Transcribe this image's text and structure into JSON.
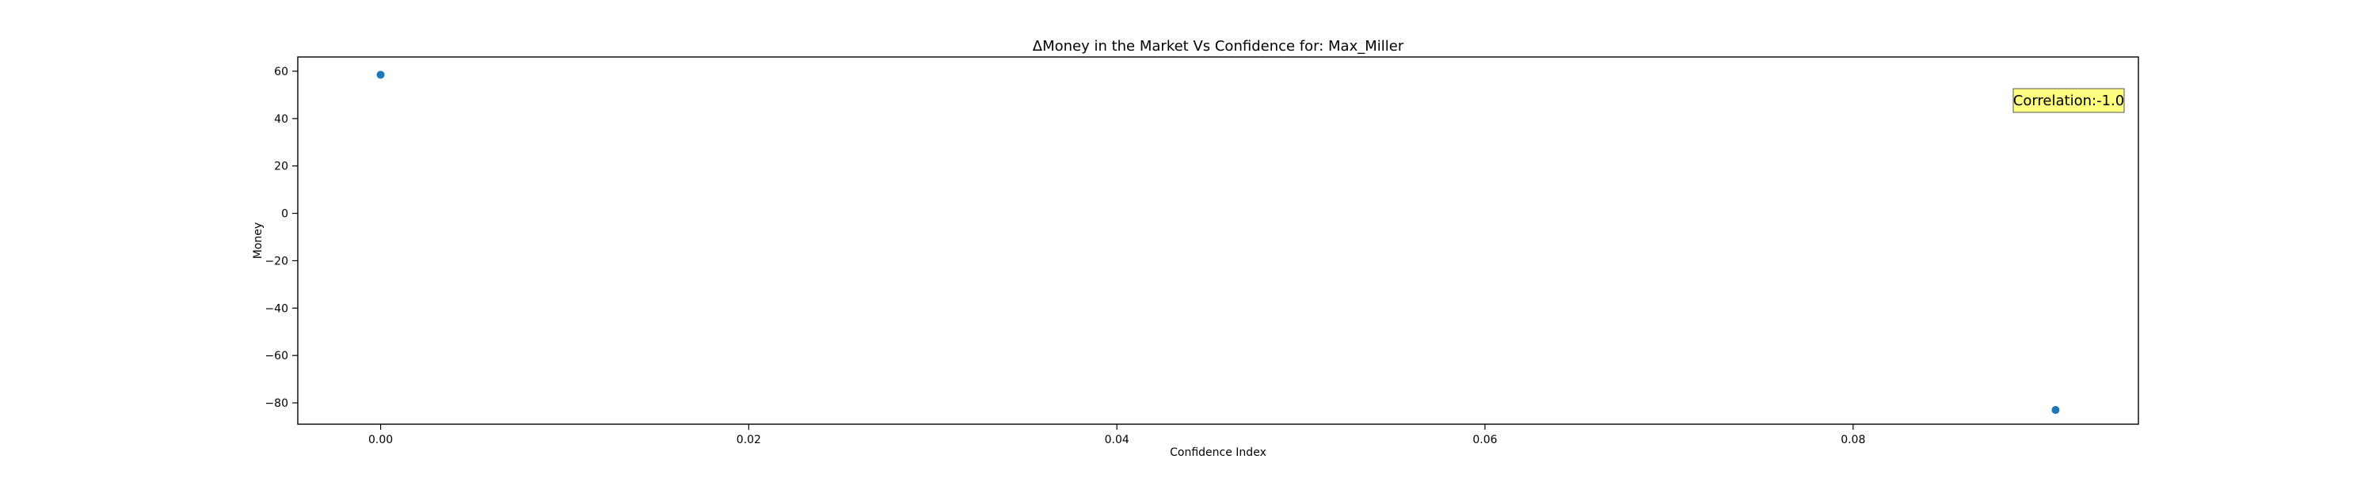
{
  "chart_data": {
    "type": "scatter",
    "title": "ΔMoney in the Market Vs Confidence for: Max_Miller",
    "xlabel": "Confidence Index",
    "ylabel": "Money",
    "xlim": [
      -0.0045,
      0.0955
    ],
    "ylim": [
      -89,
      66
    ],
    "x_ticks": [
      0.0,
      0.02,
      0.04,
      0.06,
      0.08
    ],
    "x_tick_labels": [
      "0.00",
      "0.02",
      "0.04",
      "0.06",
      "0.08"
    ],
    "y_ticks": [
      60,
      40,
      20,
      0,
      -20,
      -40,
      -60,
      -80
    ],
    "y_tick_labels": [
      "60",
      "40",
      "20",
      "0",
      "−20",
      "−40",
      "−60",
      "−80"
    ],
    "grid": false,
    "points": [
      {
        "x": 0.0,
        "y": 58.5
      },
      {
        "x": 0.091,
        "y": -83
      }
    ],
    "marker_color": "#1f77b4",
    "annotation": {
      "text": "Correlation:-1.0",
      "placement": "top-right",
      "background": "#ffff80",
      "border": "#555555"
    }
  }
}
